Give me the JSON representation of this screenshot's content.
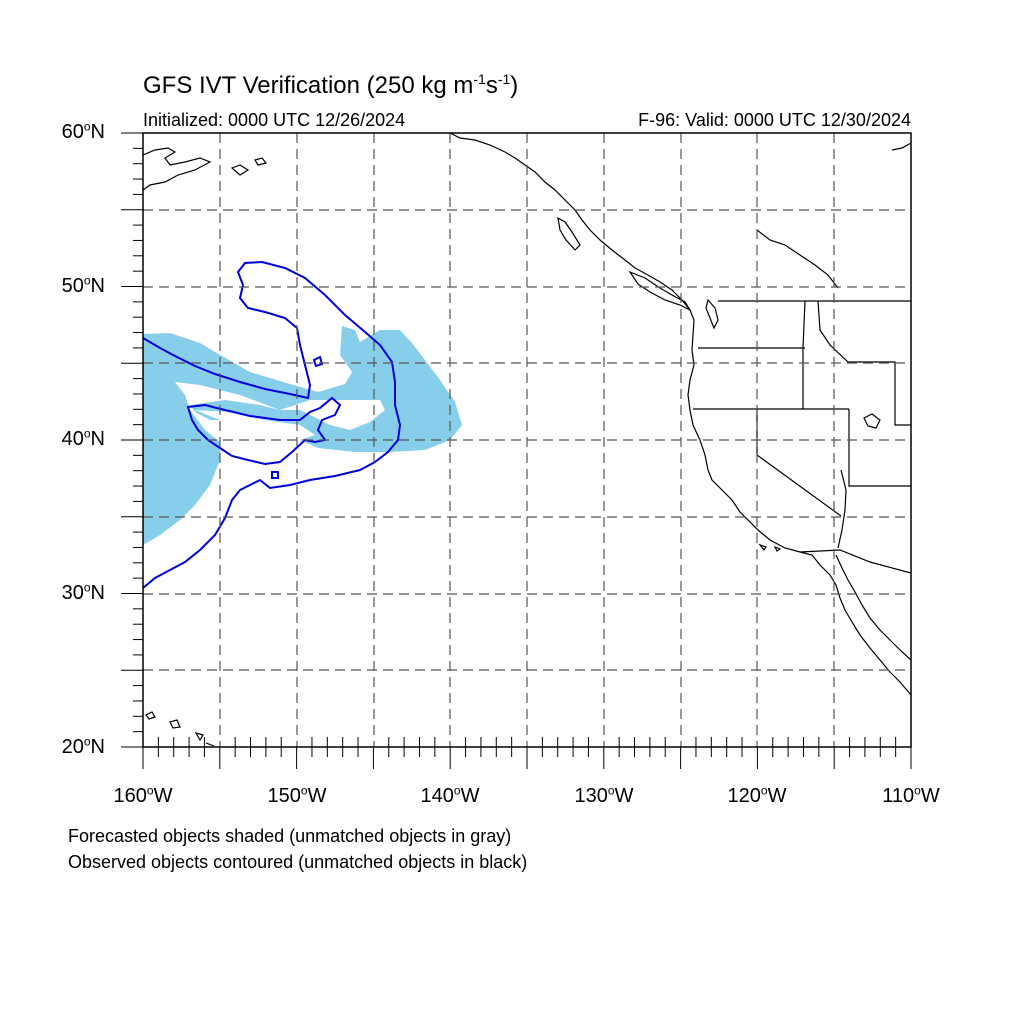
{
  "title": {
    "prefix": "GFS IVT Verification (250 kg m",
    "exp1": "-1",
    "mid": "s",
    "exp2": "-1",
    "suffix": ")"
  },
  "initialized": "Initialized: 0000 UTC 12/26/2024",
  "valid": "F-96: Valid: 0000 UTC 12/30/2024",
  "lat_labels": [
    {
      "value": "60",
      "deg": "o",
      "dir": "N"
    },
    {
      "value": "50",
      "deg": "o",
      "dir": "N"
    },
    {
      "value": "40",
      "deg": "o",
      "dir": "N"
    },
    {
      "value": "30",
      "deg": "o",
      "dir": "N"
    },
    {
      "value": "20",
      "deg": "o",
      "dir": "N"
    }
  ],
  "lon_labels": [
    {
      "value": "160",
      "deg": "o",
      "dir": "W"
    },
    {
      "value": "150",
      "deg": "o",
      "dir": "W"
    },
    {
      "value": "140",
      "deg": "o",
      "dir": "W"
    },
    {
      "value": "130",
      "deg": "o",
      "dir": "W"
    },
    {
      "value": "120",
      "deg": "o",
      "dir": "W"
    },
    {
      "value": "110",
      "deg": "o",
      "dir": "W"
    }
  ],
  "notes": [
    "Forecasted objects shaded (unmatched objects in gray)",
    "Observed objects contoured (unmatched objects in black)"
  ],
  "colors": {
    "forecast_fill": "#87ceeb",
    "observed_contour": "#0000dd",
    "coast": "#000000",
    "grid": "#555555"
  },
  "map": {
    "lon_range": [
      -160,
      -110
    ],
    "lat_range": [
      20,
      60
    ],
    "grid": "dashed 5 degree"
  }
}
